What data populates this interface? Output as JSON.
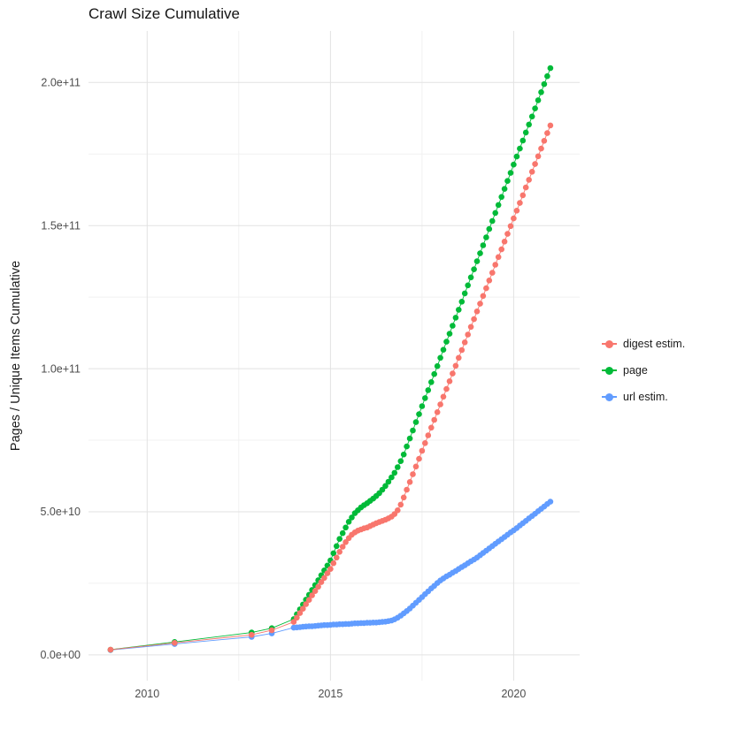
{
  "title": "Crawl Size Cumulative",
  "y_axis_title": "Pages / Unique Items Cumulative",
  "chart_data": {
    "type": "scatter",
    "title": "Crawl Size Cumulative",
    "xlabel": "",
    "ylabel": "Pages / Unique Items Cumulative",
    "legend_position": "right",
    "grid": true,
    "xlim": [
      2008.4,
      2021.8
    ],
    "ylim": [
      -9000000000.0,
      218000000000.0
    ],
    "x_ticks": [
      2010,
      2015,
      2020
    ],
    "x_tick_labels": [
      "2010",
      "2015",
      "2020"
    ],
    "x_minor": [
      2012.5,
      2017.5
    ],
    "y_ticks": [
      0,
      50000000000.0,
      100000000000.0,
      150000000000.0,
      200000000000.0
    ],
    "y_tick_labels": [
      "0.0e+00",
      "5.0e+10",
      "1.0e+11",
      "1.5e+11",
      "2.0e+11"
    ],
    "y_minor": [
      25000000000.0,
      75000000000.0,
      125000000000.0,
      175000000000.0
    ],
    "unit_multiplier": 1000000000.0,
    "x": [
      2009,
      2010.75,
      2012.85,
      2013.4,
      2014,
      2014.083,
      2014.167,
      2014.25,
      2014.333,
      2014.417,
      2014.5,
      2014.583,
      2014.667,
      2014.75,
      2014.833,
      2014.917,
      2015,
      2015.083,
      2015.167,
      2015.25,
      2015.333,
      2015.417,
      2015.5,
      2015.583,
      2015.667,
      2015.75,
      2015.833,
      2015.917,
      2016,
      2016.083,
      2016.167,
      2016.25,
      2016.333,
      2016.417,
      2016.5,
      2016.583,
      2016.667,
      2016.75,
      2016.833,
      2016.917,
      2017,
      2017.083,
      2017.167,
      2017.25,
      2017.333,
      2017.417,
      2017.5,
      2017.583,
      2017.667,
      2017.75,
      2017.833,
      2017.917,
      2018,
      2018.083,
      2018.167,
      2018.25,
      2018.333,
      2018.417,
      2018.5,
      2018.583,
      2018.667,
      2018.75,
      2018.833,
      2018.917,
      2019,
      2019.083,
      2019.167,
      2019.25,
      2019.333,
      2019.417,
      2019.5,
      2019.583,
      2019.667,
      2019.75,
      2019.833,
      2019.917,
      2020,
      2020.083,
      2020.167,
      2020.25,
      2020.333,
      2020.417,
      2020.5,
      2020.583,
      2020.667,
      2020.75,
      2020.833,
      2020.917,
      2021
    ],
    "series": [
      {
        "name": "digest estim.",
        "color": "#F8766D",
        "values": [
          1.8,
          4.2,
          7,
          8.6,
          11.5,
          13,
          14.6,
          16.1,
          17.7,
          19.2,
          20.8,
          22.3,
          23.8,
          25.4,
          26.9,
          28.5,
          30,
          32,
          34,
          36,
          37.8,
          39.4,
          40.8,
          42,
          42.8,
          43.4,
          43.8,
          44.2,
          44.5,
          45,
          45.5,
          46,
          46.4,
          46.8,
          47.2,
          47.7,
          48.3,
          49.2,
          50.5,
          52.5,
          55,
          57.7,
          60.4,
          63.1,
          65.8,
          68.5,
          71.3,
          74,
          76.7,
          79.4,
          82.1,
          84.8,
          87.5,
          90.2,
          92.9,
          95.6,
          98.3,
          101,
          103.8,
          106.5,
          109.2,
          111.9,
          114.6,
          117.3,
          120,
          122.7,
          125.4,
          128.1,
          130.8,
          133.5,
          136.3,
          139,
          141.7,
          144.4,
          147.1,
          149.8,
          152.5,
          155.2,
          157.9,
          160.6,
          163.3,
          166,
          168.8,
          171.5,
          174.2,
          176.9,
          179.6,
          182.3,
          185
        ]
      },
      {
        "name": "page",
        "color": "#00BA38",
        "values": [
          1.8,
          4.5,
          7.8,
          9.3,
          12.5,
          14.2,
          15.9,
          17.6,
          19.3,
          21,
          22.7,
          24.4,
          26.1,
          27.8,
          29.5,
          31.2,
          33,
          35.5,
          38,
          40.5,
          42.5,
          44.5,
          46.5,
          48,
          49.5,
          50.5,
          51.5,
          52.3,
          53,
          53.8,
          54.6,
          55.5,
          56.5,
          57.7,
          59,
          60.5,
          62,
          63.6,
          65.6,
          67.7,
          70,
          72.8,
          75.6,
          78.4,
          81.3,
          84.1,
          86.9,
          89.7,
          92.5,
          95.3,
          98.1,
          100.9,
          103.8,
          106.6,
          109.4,
          112.2,
          115,
          117.8,
          120.6,
          123.4,
          126.3,
          129.1,
          131.9,
          134.7,
          137.5,
          140.3,
          143.1,
          145.9,
          148.8,
          151.6,
          154.4,
          157.2,
          160,
          162.8,
          165.6,
          168.4,
          171.3,
          174.1,
          176.9,
          179.7,
          182.5,
          185.3,
          188.1,
          190.9,
          193.8,
          196.6,
          199.4,
          202.2,
          205
        ]
      },
      {
        "name": "url estim.",
        "color": "#619CFF",
        "values": [
          1.7,
          3.8,
          6.3,
          7.5,
          9.5,
          9.6,
          9.7,
          9.8,
          9.9,
          10,
          10,
          10.1,
          10.2,
          10.3,
          10.4,
          10.4,
          10.5,
          10.6,
          10.6,
          10.7,
          10.7,
          10.8,
          10.8,
          10.9,
          11,
          11,
          11.1,
          11.1,
          11.2,
          11.2,
          11.3,
          11.3,
          11.4,
          11.5,
          11.6,
          11.8,
          12,
          12.4,
          13,
          13.7,
          14.5,
          15.3,
          16.2,
          17.2,
          18.2,
          19.2,
          20.2,
          21.2,
          22.2,
          23.2,
          24.1,
          25.1,
          26,
          26.7,
          27.4,
          28,
          28.7,
          29.3,
          30,
          30.7,
          31.3,
          32,
          32.7,
          33.3,
          34,
          34.8,
          35.6,
          36.4,
          37.2,
          38,
          38.8,
          39.6,
          40.4,
          41.2,
          42,
          42.8,
          43.5,
          44.3,
          45.2,
          46,
          46.8,
          47.7,
          48.5,
          49.3,
          50.2,
          51,
          51.8,
          52.7,
          53.5
        ]
      }
    ]
  }
}
